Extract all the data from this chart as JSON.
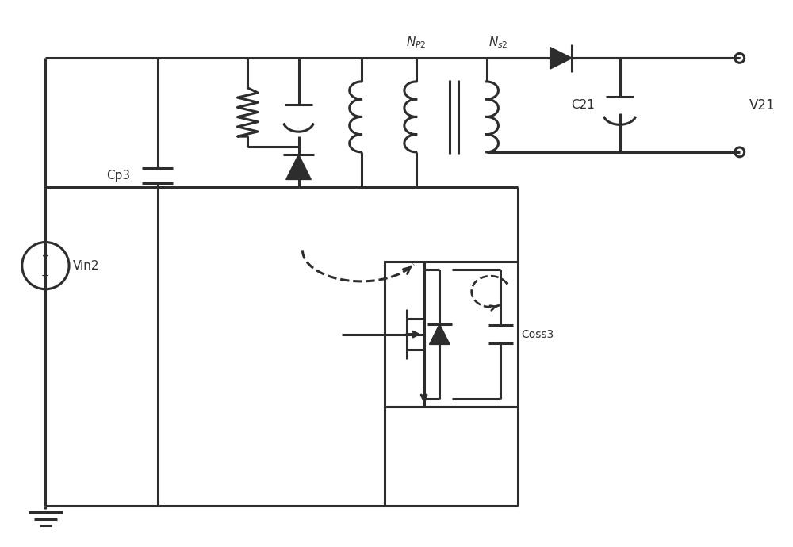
{
  "bg": "#ffffff",
  "lc": "#2d2d2d",
  "lw": 2.2,
  "fw": 10.0,
  "fh": 6.9,
  "xlim": [
    0,
    10
  ],
  "ylim": [
    0,
    6.9
  ]
}
